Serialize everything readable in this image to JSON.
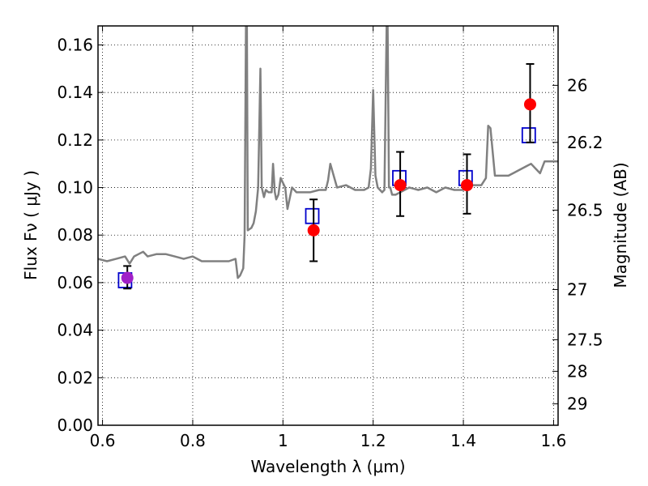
{
  "chart_data": {
    "type": "scatter",
    "title": "",
    "xlabel": "Wavelength  λ (μm)",
    "ylabel": "Flux  Fν  ( μJy )",
    "ylabel_right": "Magnitude (AB)",
    "xlim": [
      0.59,
      1.61
    ],
    "ylim": [
      0.0,
      0.168
    ],
    "grid": true,
    "grid_style": "dotted",
    "x_ticks": [
      0.6,
      0.8,
      1.0,
      1.2,
      1.4,
      1.6
    ],
    "x_tick_labels": [
      "0.6",
      "0.8",
      "1",
      "1.2",
      "1.4",
      "1.6"
    ],
    "y_ticks": [
      0.0,
      0.02,
      0.04,
      0.06,
      0.08,
      0.1,
      0.12,
      0.14,
      0.16
    ],
    "y_tick_labels": [
      "0.00",
      "0.02",
      "0.04",
      "0.06",
      "0.08",
      "0.10",
      "0.12",
      "0.14",
      "0.16"
    ],
    "right_ticks": [
      {
        "label": "26",
        "flux": 0.143
      },
      {
        "label": "26.2",
        "flux": 0.119
      },
      {
        "label": "26.5",
        "flux": 0.0905
      },
      {
        "label": "27",
        "flux": 0.0571
      },
      {
        "label": "27.5",
        "flux": 0.036
      },
      {
        "label": "28",
        "flux": 0.0227
      },
      {
        "label": "29",
        "flux": 0.009
      }
    ],
    "series": [
      {
        "kind": "line",
        "color": "#808080",
        "x": [
          0.59,
          0.61,
          0.63,
          0.65,
          0.66,
          0.67,
          0.68,
          0.69,
          0.7,
          0.72,
          0.74,
          0.76,
          0.78,
          0.8,
          0.82,
          0.84,
          0.86,
          0.88,
          0.895,
          0.9,
          0.905,
          0.912,
          0.915,
          0.918,
          0.92,
          0.922,
          0.93,
          0.935,
          0.94,
          0.945,
          0.95,
          0.953,
          0.958,
          0.962,
          0.968,
          0.975,
          0.978,
          0.982,
          0.985,
          0.99,
          0.995,
          1.0,
          1.005,
          1.01,
          1.02,
          1.03,
          1.04,
          1.05,
          1.06,
          1.08,
          1.095,
          1.1,
          1.105,
          1.12,
          1.14,
          1.16,
          1.18,
          1.19,
          1.195,
          1.2,
          1.205,
          1.21,
          1.22,
          1.225,
          1.23,
          1.232,
          1.235,
          1.238,
          1.242,
          1.25,
          1.26,
          1.28,
          1.3,
          1.32,
          1.34,
          1.36,
          1.38,
          1.4,
          1.42,
          1.44,
          1.45,
          1.455,
          1.46,
          1.47,
          1.48,
          1.5,
          1.52,
          1.54,
          1.55,
          1.56,
          1.57,
          1.58,
          1.59,
          1.61
        ],
        "y": [
          0.07,
          0.069,
          0.07,
          0.071,
          0.068,
          0.071,
          0.072,
          0.073,
          0.071,
          0.072,
          0.072,
          0.071,
          0.07,
          0.071,
          0.069,
          0.069,
          0.069,
          0.069,
          0.07,
          0.062,
          0.063,
          0.066,
          0.08,
          0.17,
          0.17,
          0.082,
          0.083,
          0.085,
          0.09,
          0.1,
          0.15,
          0.1,
          0.096,
          0.099,
          0.098,
          0.098,
          0.11,
          0.098,
          0.095,
          0.097,
          0.104,
          0.102,
          0.1,
          0.091,
          0.1,
          0.098,
          0.098,
          0.098,
          0.098,
          0.099,
          0.099,
          0.103,
          0.11,
          0.1,
          0.101,
          0.099,
          0.099,
          0.1,
          0.108,
          0.141,
          0.105,
          0.1,
          0.098,
          0.099,
          0.17,
          0.17,
          0.1,
          0.1,
          0.097,
          0.097,
          0.098,
          0.1,
          0.099,
          0.1,
          0.098,
          0.1,
          0.099,
          0.099,
          0.101,
          0.101,
          0.104,
          0.126,
          0.125,
          0.105,
          0.105,
          0.105,
          0.107,
          0.109,
          0.11,
          0.108,
          0.106,
          0.111,
          0.111,
          0.111
        ]
      },
      {
        "kind": "markers",
        "marker": "square",
        "color": "#0000cc",
        "x": [
          0.65,
          1.065,
          1.258,
          1.405,
          1.545
        ],
        "y": [
          0.061,
          0.088,
          0.104,
          0.104,
          0.122
        ]
      },
      {
        "kind": "markers",
        "marker": "circle",
        "color": "#ff0000",
        "x": [
          0.655,
          1.068,
          1.26,
          1.408,
          1.548
        ],
        "y": [
          0.062,
          0.082,
          0.101,
          0.101,
          0.135
        ],
        "yerr_low": [
          0.0575,
          0.069,
          0.088,
          0.089,
          0.119
        ],
        "yerr_high": [
          0.067,
          0.095,
          0.115,
          0.114,
          0.152
        ]
      }
    ]
  }
}
